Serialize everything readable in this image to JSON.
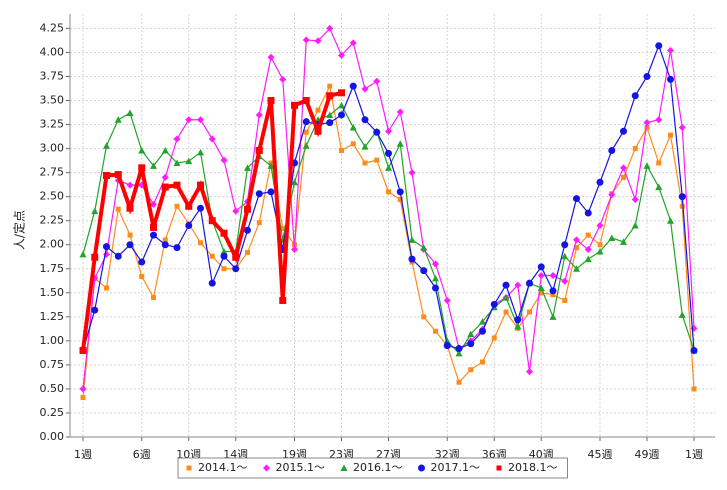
{
  "chart_data": {
    "type": "line",
    "y_label": "人/定点",
    "categories": [
      "1週",
      null,
      null,
      null,
      null,
      "6週",
      null,
      null,
      null,
      "10週",
      null,
      null,
      null,
      "14週",
      null,
      null,
      null,
      null,
      "19週",
      null,
      null,
      null,
      "23週",
      null,
      null,
      null,
      "27週",
      null,
      null,
      null,
      null,
      "32週",
      null,
      null,
      null,
      "36週",
      null,
      null,
      null,
      "40週",
      null,
      null,
      null,
      null,
      "45週",
      null,
      null,
      null,
      "49週",
      null,
      null,
      null,
      "1週"
    ],
    "ylim": [
      0,
      4.4
    ],
    "yticks": [
      {
        "value": 0,
        "label": "0.00"
      },
      {
        "value": 0.25,
        "label": "0.25"
      },
      {
        "value": 0.5,
        "label": "0.50"
      },
      {
        "value": 0.75,
        "label": "0.75"
      },
      {
        "value": 1,
        "label": "1.00"
      },
      {
        "value": 1.25,
        "label": "1.25"
      },
      {
        "value": 1.5,
        "label": "1.50"
      },
      {
        "value": 1.75,
        "label": "1.75"
      },
      {
        "value": 2,
        "label": "2.00"
      },
      {
        "value": 2.25,
        "label": "2.25"
      },
      {
        "value": 2.5,
        "label": "2.50"
      },
      {
        "value": 2.75,
        "label": "2.75"
      },
      {
        "value": 3,
        "label": "3.00"
      },
      {
        "value": 3.25,
        "label": "3.25"
      },
      {
        "value": 3.5,
        "label": "3.50"
      },
      {
        "value": 3.75,
        "label": "3.75"
      },
      {
        "value": 4,
        "label": "4.00"
      },
      {
        "value": 4.25,
        "label": "4.25"
      }
    ],
    "grid": true,
    "legend": "bottom",
    "series": [
      {
        "name": "2014.1～",
        "color": "#ff8c1a",
        "marker": "square",
        "values": [
          0.41,
          1.65,
          1.55,
          2.37,
          2.1,
          1.67,
          1.45,
          2.05,
          2.4,
          2.22,
          2.02,
          1.88,
          1.75,
          1.75,
          1.92,
          2.23,
          2.85,
          2.17,
          2.0,
          3.17,
          3.4,
          3.65,
          2.98,
          3.05,
          2.85,
          2.88,
          2.55,
          2.47,
          1.82,
          1.25,
          1.1,
          0.95,
          0.57,
          0.7,
          0.78,
          1.03,
          1.3,
          1.13,
          1.3,
          1.5,
          1.48,
          1.42,
          1.97,
          2.1,
          2.0,
          2.53,
          2.7,
          3.0,
          3.22,
          2.85,
          3.14,
          2.4,
          0.5
        ]
      },
      {
        "name": "2015.1～",
        "color": "#ff1aff",
        "marker": "diamond",
        "values": [
          0.5,
          1.65,
          1.9,
          2.67,
          2.62,
          2.62,
          2.42,
          2.7,
          3.1,
          3.3,
          3.3,
          3.1,
          2.88,
          2.35,
          2.45,
          3.35,
          3.95,
          3.72,
          1.95,
          4.13,
          4.12,
          4.25,
          3.97,
          4.1,
          3.62,
          3.7,
          3.18,
          3.38,
          2.75,
          1.95,
          1.8,
          1.42,
          0.92,
          1.0,
          1.12,
          1.38,
          1.45,
          1.58,
          0.68,
          1.68,
          1.68,
          1.62,
          2.05,
          1.95,
          2.2,
          2.52,
          2.8,
          2.47,
          3.27,
          3.3,
          4.02,
          3.22,
          1.13
        ]
      },
      {
        "name": "2016.1～",
        "color": "#22a32a",
        "marker": "triangle",
        "values": [
          1.9,
          2.35,
          3.03,
          3.3,
          3.37,
          2.98,
          2.82,
          2.98,
          2.85,
          2.87,
          2.96,
          2.25,
          1.93,
          1.93,
          2.8,
          2.92,
          2.82,
          2.05,
          2.65,
          3.03,
          3.3,
          3.35,
          3.45,
          3.22,
          3.02,
          3.18,
          2.8,
          3.05,
          2.05,
          1.97,
          1.65,
          1.0,
          0.87,
          1.07,
          1.2,
          1.35,
          1.45,
          1.15,
          1.6,
          1.55,
          1.25,
          1.88,
          1.75,
          1.85,
          1.93,
          2.07,
          2.03,
          2.2,
          2.82,
          2.6,
          2.25,
          1.27,
          0.9
        ]
      },
      {
        "name": "2017.1～",
        "color": "#1414e6",
        "marker": "circle",
        "values": [
          0.9,
          1.32,
          1.98,
          1.88,
          2.0,
          1.82,
          2.1,
          2.0,
          1.97,
          2.2,
          2.38,
          1.6,
          1.88,
          1.75,
          2.15,
          2.53,
          2.55,
          1.95,
          2.85,
          3.28,
          3.25,
          3.27,
          3.35,
          3.65,
          3.3,
          3.17,
          2.95,
          2.55,
          1.85,
          1.73,
          1.55,
          0.95,
          0.92,
          0.97,
          1.1,
          1.38,
          1.58,
          1.22,
          1.6,
          1.77,
          1.52,
          2.0,
          2.48,
          2.33,
          2.65,
          2.98,
          3.18,
          3.55,
          3.75,
          4.07,
          3.72,
          2.5,
          0.9
        ]
      },
      {
        "name": "2018.1～",
        "color": "#ff0000",
        "marker": "bigsquare",
        "width": 4,
        "values": [
          0.9,
          1.87,
          2.72,
          2.73,
          2.38,
          2.8,
          2.18,
          2.6,
          2.62,
          2.4,
          2.62,
          2.25,
          2.12,
          1.87,
          2.37,
          2.98,
          3.5,
          1.42,
          3.45,
          3.5,
          3.18,
          3.55,
          3.58,
          null,
          null,
          null,
          null,
          null,
          null,
          null,
          null,
          null,
          null,
          null,
          null,
          null,
          null,
          null,
          null,
          null,
          null,
          null,
          null,
          null,
          null,
          null,
          null,
          null,
          null,
          null,
          null,
          null,
          null
        ]
      }
    ]
  }
}
